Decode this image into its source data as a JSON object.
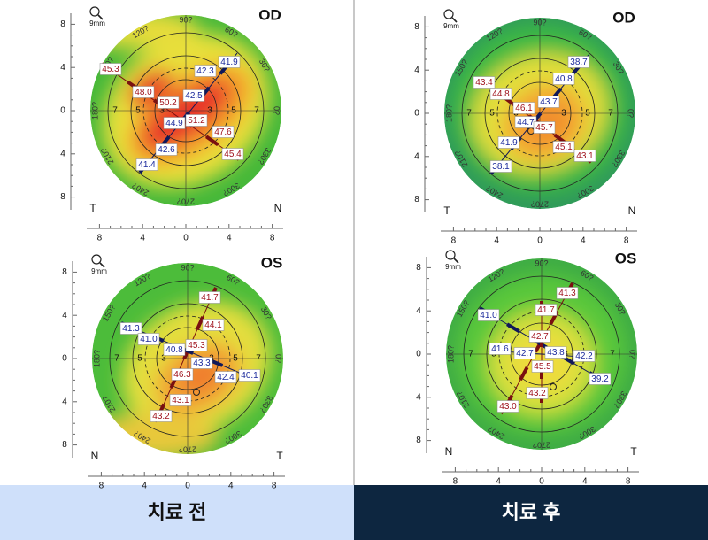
{
  "angle_labels": [
    "90?",
    "60?",
    "30?",
    "0?",
    "330?",
    "300?",
    "270?",
    "240?",
    "210?",
    "180?",
    "150?",
    "120?"
  ],
  "ring_labels": [
    "3",
    "5",
    "7"
  ],
  "axis_ticks": [
    "8",
    "4",
    "0",
    "4",
    "8"
  ],
  "scale_label": "9mm",
  "panels": [
    {
      "title": "치료 전",
      "maps": [
        {
          "eye": "OD",
          "left_label": "T",
          "right_label": "N",
          "readings": [
            {
              "value": "45.3",
              "color": "#a0141e"
            },
            {
              "value": "48.0",
              "color": "#a0141e"
            },
            {
              "value": "50.2",
              "color": "#a0141e"
            },
            {
              "value": "42.5",
              "color": "#1c2a9c"
            },
            {
              "value": "42.3",
              "color": "#1c2a9c"
            },
            {
              "value": "41.9",
              "color": "#1c2a9c"
            },
            {
              "value": "44.9",
              "color": "#1c2a9c"
            },
            {
              "value": "51.2",
              "color": "#a0141e"
            },
            {
              "value": "47.6",
              "color": "#a0141e"
            },
            {
              "value": "45.4",
              "color": "#a0141e"
            },
            {
              "value": "42.6",
              "color": "#1c2a9c"
            },
            {
              "value": "41.4",
              "color": "#1c2a9c"
            }
          ]
        },
        {
          "eye": "OS",
          "left_label": "N",
          "right_label": "T",
          "readings": [
            {
              "value": "41.7",
              "color": "#a0141e"
            },
            {
              "value": "44.1",
              "color": "#a0141e"
            },
            {
              "value": "41.3",
              "color": "#1c2a9c"
            },
            {
              "value": "41.0",
              "color": "#1c2a9c"
            },
            {
              "value": "45.3",
              "color": "#a0141e"
            },
            {
              "value": "40.8",
              "color": "#1c2a9c"
            },
            {
              "value": "43.3",
              "color": "#1c2a9c"
            },
            {
              "value": "46.3",
              "color": "#a0141e"
            },
            {
              "value": "42.4",
              "color": "#1c2a9c"
            },
            {
              "value": "40.1",
              "color": "#1c2a9c"
            },
            {
              "value": "43.1",
              "color": "#a0141e"
            },
            {
              "value": "43.2",
              "color": "#a0141e"
            }
          ]
        }
      ]
    },
    {
      "title": "치료 후",
      "maps": [
        {
          "eye": "OD",
          "left_label": "T",
          "right_label": "N",
          "readings": [
            {
              "value": "43.4",
              "color": "#a0141e"
            },
            {
              "value": "44.8",
              "color": "#a0141e"
            },
            {
              "value": "46.1",
              "color": "#a0141e"
            },
            {
              "value": "43.7",
              "color": "#1c2a9c"
            },
            {
              "value": "40.8",
              "color": "#1c2a9c"
            },
            {
              "value": "38.7",
              "color": "#1c2a9c"
            },
            {
              "value": "44.7",
              "color": "#1c2a9c"
            },
            {
              "value": "45.7",
              "color": "#a0141e"
            },
            {
              "value": "45.1",
              "color": "#a0141e"
            },
            {
              "value": "43.1",
              "color": "#a0141e"
            },
            {
              "value": "41.9",
              "color": "#1c2a9c"
            },
            {
              "value": "38.1",
              "color": "#1c2a9c"
            }
          ]
        },
        {
          "eye": "OS",
          "left_label": "N",
          "right_label": "T",
          "readings": [
            {
              "value": "41.3",
              "color": "#a0141e"
            },
            {
              "value": "41.7",
              "color": "#a0141e"
            },
            {
              "value": "41.0",
              "color": "#1c2a9c"
            },
            {
              "value": "42.7",
              "color": "#a0141e"
            },
            {
              "value": "41.6",
              "color": "#1c2a9c"
            },
            {
              "value": "42.7",
              "color": "#1c2a9c"
            },
            {
              "value": "43.8",
              "color": "#1c2a9c"
            },
            {
              "value": "42.2",
              "color": "#1c2a9c"
            },
            {
              "value": "45.5",
              "color": "#a0141e"
            },
            {
              "value": "39.2",
              "color": "#1c2a9c"
            },
            {
              "value": "43.2",
              "color": "#a0141e"
            },
            {
              "value": "43.0",
              "color": "#a0141e"
            }
          ]
        }
      ]
    }
  ]
}
